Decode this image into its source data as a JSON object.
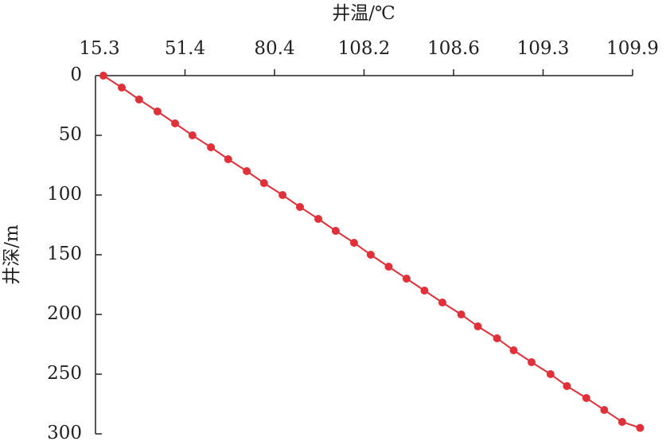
{
  "chart_data": {
    "type": "line",
    "x_label": "井温/℃",
    "y_label": "井深/m",
    "x": [
      18.5,
      25.9,
      32.9,
      40.3,
      47.4,
      53.8,
      59.8,
      65.4,
      71.4,
      77.0,
      82.9,
      88.3,
      94.0,
      99.4,
      105.1,
      108.23,
      108.31,
      108.39,
      108.47,
      108.55,
      108.66,
      108.79,
      108.94,
      109.07,
      109.21,
      109.35,
      109.46,
      109.59,
      109.71,
      109.83,
      109.95
    ],
    "series": [
      {
        "color": "#e0303a",
        "values": [
          0,
          10,
          20,
          30,
          40,
          50,
          60,
          70,
          80,
          90,
          100,
          110,
          120,
          130,
          140,
          150,
          160,
          170,
          180,
          190,
          200,
          210,
          220,
          230,
          240,
          250,
          260,
          270,
          280,
          290,
          295
        ]
      }
    ],
    "xlim": [
      15.3,
      109.9
    ],
    "xticks": [
      15.3,
      51.4,
      80.4,
      108.2,
      108.6,
      109.3,
      109.9
    ],
    "ylim": [
      0,
      300
    ],
    "yticks": [
      0,
      50,
      100,
      150,
      200,
      250,
      300
    ],
    "y_inverted": true,
    "x_axis_position": "top"
  }
}
